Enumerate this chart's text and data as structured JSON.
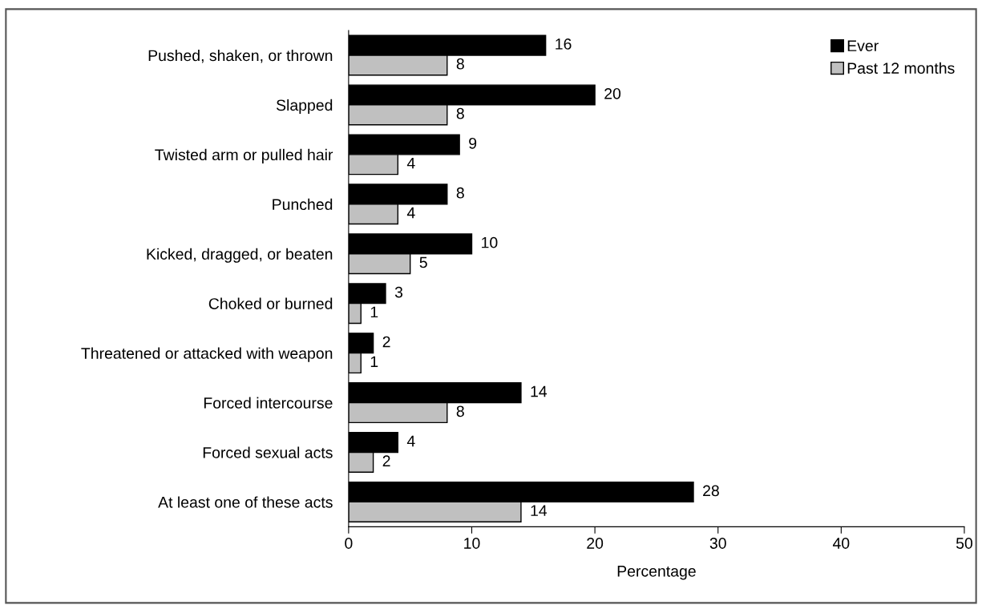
{
  "chart_data": {
    "type": "bar",
    "orientation": "horizontal",
    "xlabel": "Percentage",
    "categories": [
      "Pushed, shaken, or thrown",
      "Slapped",
      "Twisted arm or pulled hair",
      "Punched",
      "Kicked, dragged, or beaten",
      "Choked or burned",
      "Threatened or attacked with weapon",
      "Forced intercourse",
      "Forced sexual acts",
      "At least one of these acts"
    ],
    "series": [
      {
        "name": "Ever",
        "color": "#000000",
        "values": [
          16,
          20,
          9,
          8,
          10,
          3,
          2,
          14,
          4,
          28
        ]
      },
      {
        "name": "Past 12 months",
        "color": "#c0c0c0",
        "values": [
          8,
          8,
          4,
          4,
          5,
          1,
          1,
          8,
          2,
          14
        ]
      }
    ],
    "xlim": [
      0,
      50
    ],
    "xticks": [
      0,
      10,
      20,
      30,
      40,
      50
    ],
    "data_labels": true,
    "legend": "top right",
    "grid": false
  }
}
